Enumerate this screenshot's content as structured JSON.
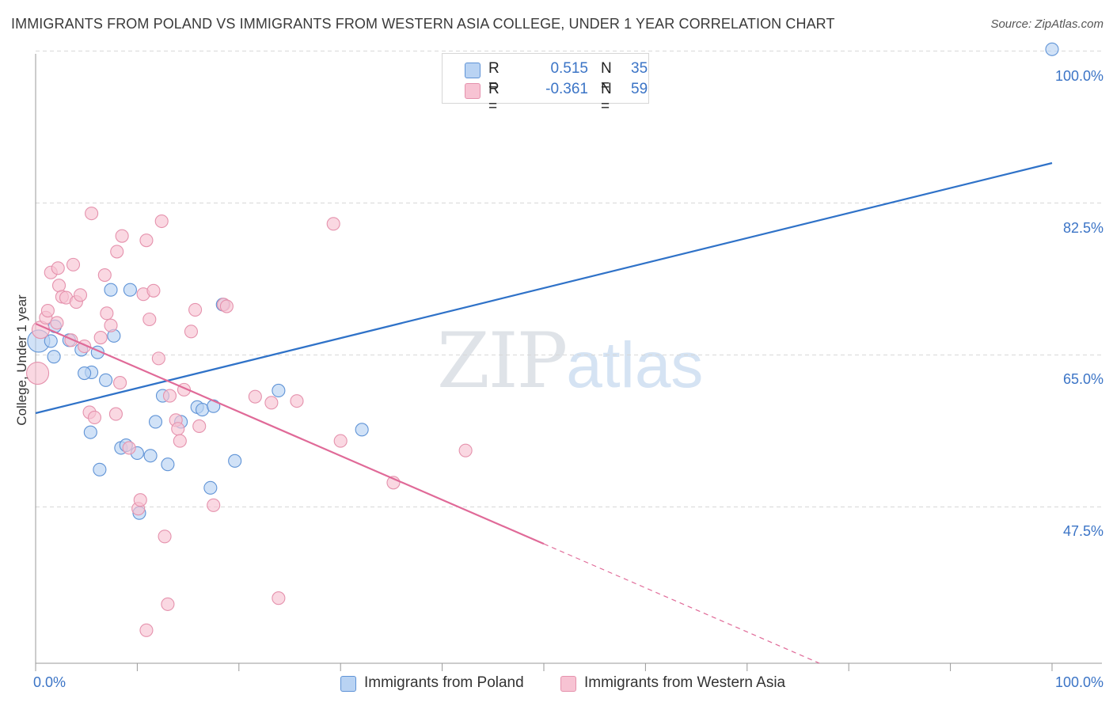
{
  "title": "IMMIGRANTS FROM POLAND VS IMMIGRANTS FROM WESTERN ASIA COLLEGE, UNDER 1 YEAR CORRELATION CHART",
  "source": "Source: ZipAtlas.com",
  "watermark": {
    "zip": "ZIP",
    "atlas": "atlas"
  },
  "colors": {
    "blue_fill": "#b9d3f3",
    "blue_stroke": "#5f93d6",
    "blue_line": "#2f72c8",
    "pink_fill": "#f7c3d3",
    "pink_stroke": "#e592ad",
    "pink_line": "#e06a98",
    "grid": "#d8d8d8",
    "axis_text": "#3b74c6"
  },
  "legend": {
    "rows": [
      {
        "r_label": "R =",
        "r_value": "0.515",
        "n_label": "N =",
        "n_value": "35"
      },
      {
        "r_label": "R =",
        "r_value": "-0.361",
        "n_label": "N =",
        "n_value": "59"
      }
    ]
  },
  "bottom_legend": {
    "poland": "Immigrants from Poland",
    "western_asia": "Immigrants from Western Asia"
  },
  "chart_data": {
    "type": "scatter",
    "title": "IMMIGRANTS FROM POLAND VS IMMIGRANTS FROM WESTERN ASIA COLLEGE, UNDER 1 YEAR CORRELATION CHART",
    "xlabel": "",
    "ylabel": "College, Under 1 year",
    "xlim": [
      0,
      100
    ],
    "ylim": [
      29.5,
      101.5
    ],
    "x_tick_labels": {
      "min": "0.0%",
      "max": "100.0%"
    },
    "y_ticks": [
      {
        "value": 100.0,
        "label": "100.0%"
      },
      {
        "value": 82.5,
        "label": "82.5%"
      },
      {
        "value": 65.0,
        "label": "65.0%"
      },
      {
        "value": 47.5,
        "label": "47.5%"
      }
    ],
    "x_tick_marks": [
      0,
      10,
      20,
      30,
      40,
      50,
      60,
      70,
      80,
      90,
      100
    ],
    "series": [
      {
        "name": "Immigrants from Poland",
        "color": "blue",
        "R": 0.515,
        "N": 35,
        "trend": {
          "x0": 0,
          "y0": 58.3,
          "x1": 100,
          "y1": 87.1,
          "solid_until": 100
        },
        "points": [
          [
            0.3,
            66.6,
            14
          ],
          [
            1.5,
            66.6,
            8
          ],
          [
            1.9,
            68.3,
            8
          ],
          [
            1.8,
            64.8,
            8
          ],
          [
            3.3,
            66.7,
            8
          ],
          [
            4.5,
            65.6,
            8
          ],
          [
            5.5,
            63.0,
            8
          ],
          [
            4.8,
            62.9,
            8
          ],
          [
            6.1,
            65.3,
            8
          ],
          [
            7.7,
            67.2,
            8
          ],
          [
            7.4,
            72.5,
            8
          ],
          [
            9.3,
            72.5,
            8
          ],
          [
            6.9,
            62.1,
            8
          ],
          [
            5.4,
            56.1,
            8
          ],
          [
            6.3,
            51.8,
            8
          ],
          [
            8.4,
            54.3,
            8
          ],
          [
            8.9,
            54.6,
            8
          ],
          [
            10.0,
            53.7,
            8
          ],
          [
            11.3,
            53.4,
            8
          ],
          [
            11.8,
            57.3,
            8
          ],
          [
            12.5,
            60.3,
            8
          ],
          [
            13.0,
            52.4,
            8
          ],
          [
            14.3,
            57.3,
            8
          ],
          [
            15.9,
            59.0,
            8
          ],
          [
            16.4,
            58.7,
            8
          ],
          [
            17.5,
            59.1,
            8
          ],
          [
            18.4,
            70.8,
            8
          ],
          [
            19.6,
            52.8,
            8
          ],
          [
            17.2,
            49.7,
            8
          ],
          [
            10.2,
            46.8,
            8
          ],
          [
            23.9,
            60.9,
            8
          ],
          [
            32.1,
            56.4,
            8
          ],
          [
            100.0,
            100.2,
            8
          ]
        ]
      },
      {
        "name": "Immigrants from Western Asia",
        "color": "pink",
        "R": -0.361,
        "N": 59,
        "trend": {
          "x0": 0,
          "y0": 68.6,
          "x1": 100,
          "y1": 17.9,
          "solid_until": 50
        },
        "points": [
          [
            0.2,
            62.9,
            14
          ],
          [
            0.5,
            67.9,
            11
          ],
          [
            1.0,
            69.3,
            8
          ],
          [
            1.2,
            70.1,
            8
          ],
          [
            1.5,
            74.5,
            8
          ],
          [
            2.1,
            68.7,
            8
          ],
          [
            2.2,
            75.0,
            8
          ],
          [
            2.3,
            73.0,
            8
          ],
          [
            2.6,
            71.7,
            8
          ],
          [
            3.0,
            71.6,
            8
          ],
          [
            3.5,
            66.7,
            8
          ],
          [
            3.7,
            75.4,
            8
          ],
          [
            4.0,
            71.1,
            8
          ],
          [
            4.4,
            71.9,
            8
          ],
          [
            4.8,
            66.0,
            8
          ],
          [
            5.3,
            58.4,
            8
          ],
          [
            5.8,
            57.8,
            8
          ],
          [
            5.5,
            81.3,
            8
          ],
          [
            6.4,
            67.0,
            8
          ],
          [
            6.8,
            74.2,
            8
          ],
          [
            7.0,
            69.8,
            8
          ],
          [
            7.4,
            68.4,
            8
          ],
          [
            7.9,
            58.2,
            8
          ],
          [
            8.0,
            76.9,
            8
          ],
          [
            8.3,
            61.8,
            8
          ],
          [
            8.5,
            78.7,
            8
          ],
          [
            9.2,
            54.3,
            8
          ],
          [
            10.1,
            47.3,
            8
          ],
          [
            10.3,
            48.3,
            8
          ],
          [
            10.6,
            72.0,
            8
          ],
          [
            10.9,
            78.2,
            8
          ],
          [
            11.2,
            69.1,
            8
          ],
          [
            11.6,
            72.4,
            8
          ],
          [
            12.1,
            64.6,
            8
          ],
          [
            12.4,
            80.4,
            8
          ],
          [
            12.7,
            44.1,
            8
          ],
          [
            13.2,
            60.3,
            8
          ],
          [
            13.0,
            36.3,
            8
          ],
          [
            13.8,
            57.5,
            8
          ],
          [
            14.0,
            56.5,
            8
          ],
          [
            14.2,
            55.1,
            8
          ],
          [
            14.6,
            61.0,
            8
          ],
          [
            15.3,
            67.7,
            8
          ],
          [
            15.7,
            70.2,
            8
          ],
          [
            16.1,
            56.8,
            8
          ],
          [
            17.5,
            47.7,
            8
          ],
          [
            18.5,
            70.8,
            8
          ],
          [
            18.8,
            70.6,
            8
          ],
          [
            10.9,
            33.3,
            8
          ],
          [
            21.6,
            60.2,
            8
          ],
          [
            23.2,
            59.5,
            8
          ],
          [
            23.9,
            37.0,
            8
          ],
          [
            25.7,
            59.7,
            8
          ],
          [
            29.3,
            80.1,
            8
          ],
          [
            30.0,
            55.1,
            8
          ],
          [
            35.2,
            50.3,
            8
          ],
          [
            42.3,
            54.0,
            8
          ]
        ]
      }
    ]
  }
}
